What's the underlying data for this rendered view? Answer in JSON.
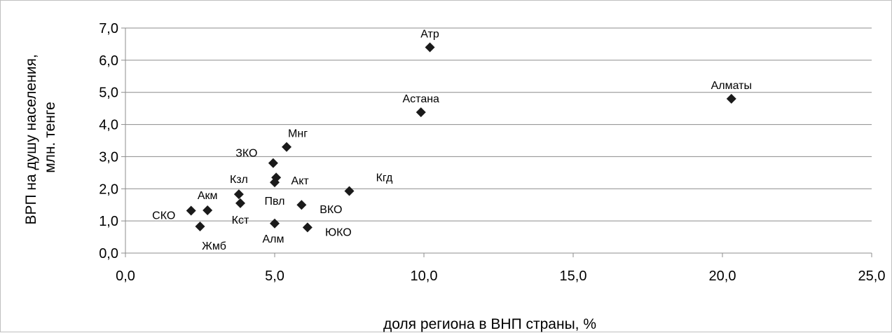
{
  "chart_data": {
    "type": "scatter",
    "title": "",
    "xlabel": "доля региона в ВНП страны, %",
    "ylabel_lines": [
      "ВРП на душу населения,",
      "млн. тенге"
    ],
    "xlim": [
      0,
      25
    ],
    "ylim": [
      0,
      7
    ],
    "x_ticks": [
      "0,0",
      "5,0",
      "10,0",
      "15,0",
      "20,0",
      "25,0"
    ],
    "y_ticks": [
      "0,0",
      "1,0",
      "2,0",
      "3,0",
      "4,0",
      "5,0",
      "6,0",
      "7,0"
    ],
    "grid": "horizontal",
    "legend": "none",
    "marker_color": "#1a1a1a",
    "points": [
      {
        "label": "Атр",
        "x": 10.2,
        "y": 6.4
      },
      {
        "label": "Алматы",
        "x": 20.3,
        "y": 4.8
      },
      {
        "label": "Астана",
        "x": 9.9,
        "y": 4.38
      },
      {
        "label": "Мнг",
        "x": 5.4,
        "y": 3.3
      },
      {
        "label": "ЗКО",
        "x": 4.95,
        "y": 2.8
      },
      {
        "label": "Акт",
        "x": 5.05,
        "y": 2.35
      },
      {
        "label": "Пвл",
        "x": 5.0,
        "y": 2.2
      },
      {
        "label": "Кгд",
        "x": 7.5,
        "y": 1.93
      },
      {
        "label": "Кзл",
        "x": 3.8,
        "y": 1.83
      },
      {
        "label": "Кст",
        "x": 3.85,
        "y": 1.55
      },
      {
        "label": "ВКО",
        "x": 5.9,
        "y": 1.5
      },
      {
        "label": "Акм",
        "x": 2.75,
        "y": 1.33
      },
      {
        "label": "СКО",
        "x": 2.2,
        "y": 1.32
      },
      {
        "label": "Жмб",
        "x": 2.5,
        "y": 0.83
      },
      {
        "label": "Алм",
        "x": 5.0,
        "y": 0.92
      },
      {
        "label": "ЮКО",
        "x": 6.1,
        "y": 0.8
      }
    ]
  }
}
